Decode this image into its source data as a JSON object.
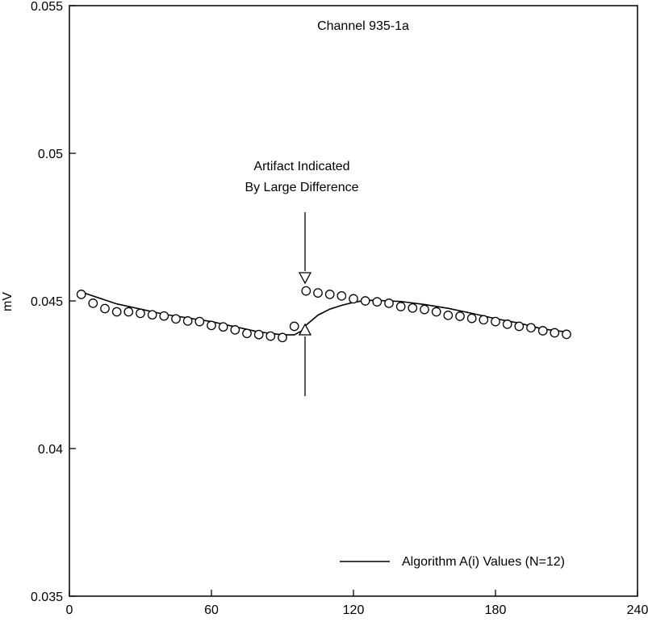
{
  "chart_data": {
    "type": "scatter",
    "title": "Channel 935-1a",
    "xlabel": "",
    "ylabel": "mV",
    "xlim": [
      0,
      240
    ],
    "ylim": [
      0.035,
      0.055
    ],
    "x_ticks": [
      0,
      60,
      120,
      180,
      240
    ],
    "y_ticks": [
      0.035,
      0.04,
      0.045,
      0.05,
      0.055
    ],
    "x_tick_labels": [
      "0",
      "60",
      "120",
      "180",
      "240"
    ],
    "y_tick_labels": [
      "0.035",
      "0.04",
      "0.045",
      "0.05",
      "0.055"
    ],
    "grid": false,
    "legend_position": "bottom-right",
    "series": [
      {
        "marker": "open-circle",
        "x": [
          5,
          10,
          15,
          20,
          25,
          30,
          35,
          40,
          45,
          50,
          55,
          60,
          65,
          70,
          75,
          80,
          85,
          90,
          95,
          100,
          105,
          110,
          115,
          120,
          125,
          130,
          135,
          140,
          145,
          150,
          155,
          160,
          165,
          170,
          175,
          180,
          185,
          190,
          195,
          200,
          205,
          210
        ],
        "y": [
          0.04522,
          0.04492,
          0.04474,
          0.04463,
          0.04463,
          0.04458,
          0.04453,
          0.04449,
          0.04439,
          0.04432,
          0.0443,
          0.04417,
          0.04412,
          0.04402,
          0.0439,
          0.04386,
          0.04381,
          0.04376,
          0.04414,
          0.04534,
          0.04527,
          0.04522,
          0.04517,
          0.04507,
          0.045,
          0.04497,
          0.04492,
          0.04481,
          0.04476,
          0.04471,
          0.04463,
          0.04451,
          0.04448,
          0.04441,
          0.04436,
          0.0443,
          0.04421,
          0.04414,
          0.04409,
          0.04399,
          0.04392,
          0.04387
        ]
      },
      {
        "name": "Algorithm A(i) Values (N=12)",
        "line": true,
        "x": [
          5,
          20,
          40,
          60,
          80,
          90,
          95,
          98,
          100,
          105,
          110,
          115,
          120,
          125,
          130,
          140,
          150,
          160,
          170,
          180,
          190,
          200,
          210
        ],
        "y": [
          0.0453,
          0.0449,
          0.04455,
          0.0443,
          0.04395,
          0.04385,
          0.04385,
          0.04398,
          0.04418,
          0.04452,
          0.04472,
          0.04485,
          0.04495,
          0.04502,
          0.04502,
          0.04498,
          0.04488,
          0.04475,
          0.04458,
          0.0444,
          0.04425,
          0.04405,
          0.04395
        ]
      }
    ],
    "annotations": [
      {
        "lines": [
          "Artifact Indicated",
          "By Large Difference"
        ],
        "x": 100
      }
    ]
  }
}
